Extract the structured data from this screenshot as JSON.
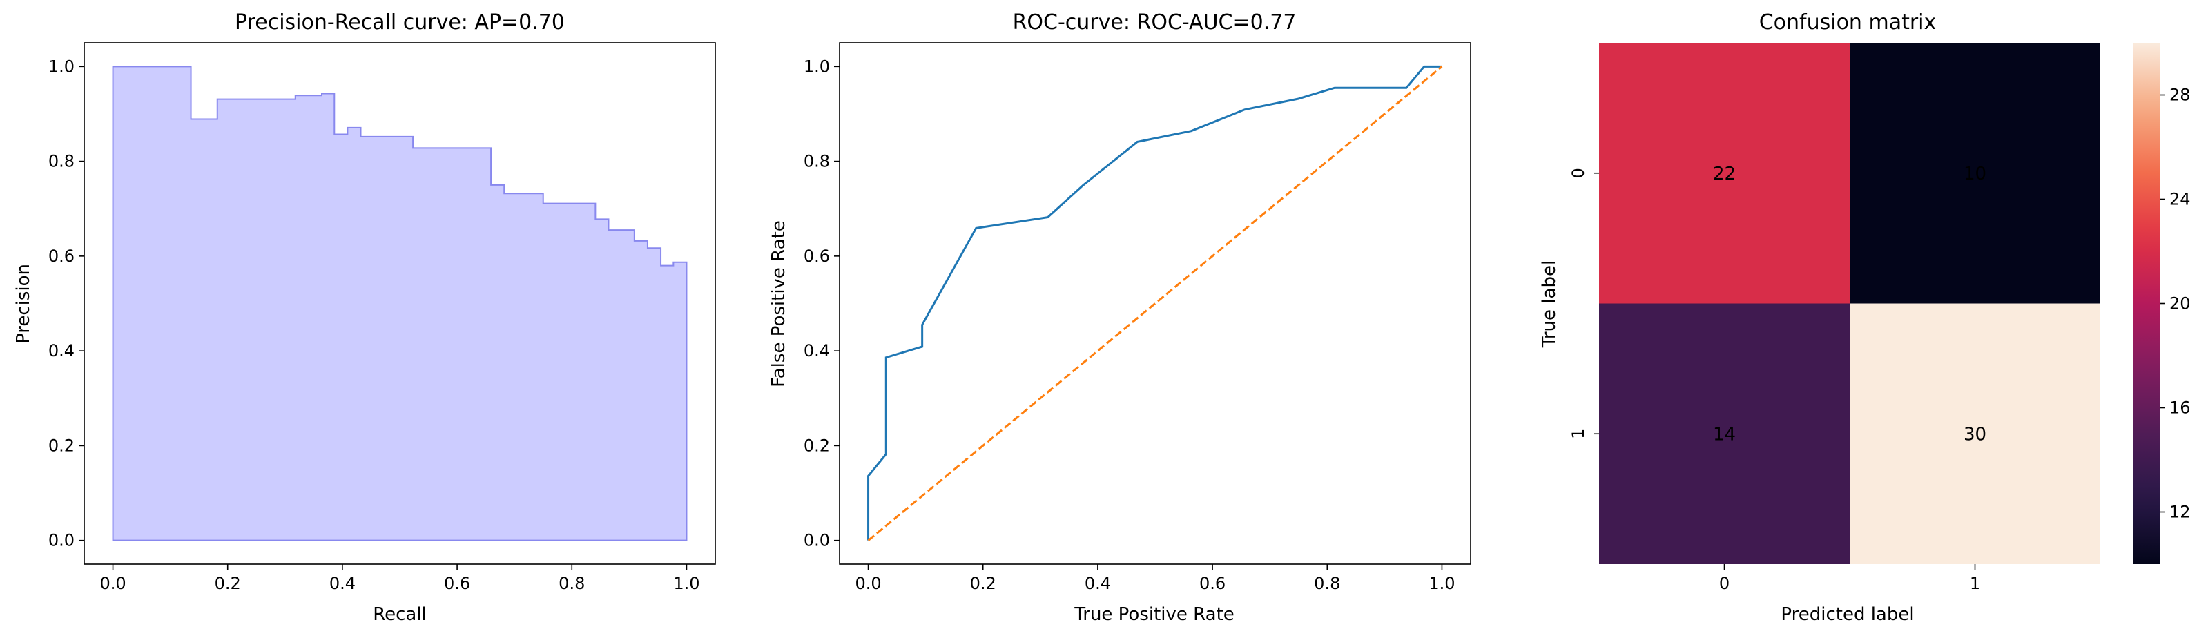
{
  "chart_data": [
    {
      "type": "area",
      "title": "Precision-Recall curve: AP=0.70",
      "xlabel": "Recall",
      "ylabel": "Precision",
      "xlim": [
        -0.05,
        1.05
      ],
      "ylim": [
        -0.05,
        1.05
      ],
      "xticks": [
        "0.0",
        "0.2",
        "0.4",
        "0.6",
        "0.8",
        "1.0"
      ],
      "yticks": [
        "0.0",
        "0.2",
        "0.4",
        "0.6",
        "0.8",
        "1.0"
      ],
      "step": "post",
      "fill_color": "#ccccff",
      "line_color": "#8888ee",
      "series": [
        {
          "x": [
            0.0,
            0.136,
            0.182,
            0.318,
            0.364,
            0.386,
            0.409,
            0.432,
            0.477,
            0.523,
            0.659,
            0.682,
            0.75,
            0.841,
            0.864,
            0.909,
            0.932,
            0.955,
            0.977,
            1.0
          ],
          "y": [
            1.0,
            0.889,
            0.931,
            0.939,
            0.943,
            0.857,
            0.871,
            0.852,
            0.852,
            0.828,
            0.75,
            0.732,
            0.711,
            0.678,
            0.655,
            0.632,
            0.617,
            0.58,
            0.587,
            0.587
          ]
        }
      ]
    },
    {
      "type": "line",
      "title": "ROC-curve: ROC-AUC=0.77",
      "xlabel": "True Positive Rate",
      "ylabel": "False Positive Rate",
      "xlim": [
        -0.05,
        1.05
      ],
      "ylim": [
        -0.05,
        1.05
      ],
      "xticks": [
        "0.0",
        "0.2",
        "0.4",
        "0.6",
        "0.8",
        "1.0"
      ],
      "yticks": [
        "0.0",
        "0.2",
        "0.4",
        "0.6",
        "0.8",
        "1.0"
      ],
      "series": [
        {
          "color": "#1f77b4",
          "dash": false,
          "x": [
            0.0,
            0.0,
            0.031,
            0.031,
            0.094,
            0.094,
            0.188,
            0.313,
            0.375,
            0.469,
            0.563,
            0.656,
            0.75,
            0.813,
            0.938,
            0.969,
            1.0
          ],
          "y": [
            0.0,
            0.136,
            0.182,
            0.386,
            0.409,
            0.455,
            0.659,
            0.682,
            0.75,
            0.841,
            0.864,
            0.909,
            0.932,
            0.955,
            0.955,
            1.0,
            1.0
          ]
        },
        {
          "color": "#ff7f0e",
          "dash": true,
          "x": [
            0.0,
            1.0
          ],
          "y": [
            0.0,
            1.0
          ]
        }
      ]
    },
    {
      "type": "heatmap",
      "title": "Confusion matrix",
      "xlabel": "Predicted label",
      "ylabel": "True label",
      "xticks": [
        "0",
        "1"
      ],
      "yticks": [
        "0",
        "1"
      ],
      "matrix": [
        [
          22,
          10
        ],
        [
          14,
          30
        ]
      ],
      "colorbar": {
        "min": 10,
        "max": 30,
        "ticks": [
          "12",
          "16",
          "20",
          "24",
          "28"
        ],
        "tick_values": [
          12,
          16,
          20,
          24,
          28
        ]
      }
    }
  ]
}
